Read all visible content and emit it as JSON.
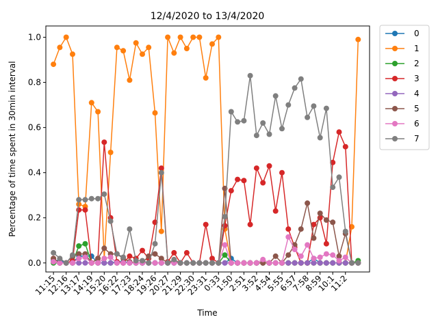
{
  "chart_data": {
    "type": "line",
    "title": "12/4/2020 to 13/4/2020",
    "xlabel": "Time",
    "ylabel": "Percentage of time spent in 30min interval",
    "ylim": [
      -0.04,
      1.05
    ],
    "yticks": [
      "0.0",
      "0.2",
      "0.4",
      "0.6",
      "0.8",
      "1.0"
    ],
    "ytick_values": [
      0,
      0.2,
      0.4,
      0.6,
      0.8,
      1.0
    ],
    "xtick_labels": [
      "11:15",
      "12:16",
      "13:17",
      "14:19",
      "15:20",
      "16:22",
      "17:23",
      "18:24",
      "19:26",
      "20:27",
      "21:29",
      "22:30",
      "23:31",
      "0:33",
      "1:50",
      "2:51",
      "3:52",
      "4:54",
      "5:55",
      "6:57",
      "7:58",
      "8:59",
      "10:1",
      "11:2"
    ],
    "xtick_index": [
      0,
      2,
      4,
      6,
      8,
      10,
      12,
      14,
      16,
      18,
      20,
      22,
      24,
      26,
      28,
      30,
      32,
      34,
      36,
      38,
      40,
      42,
      44,
      46
    ],
    "n_points": 49,
    "grid": false,
    "legend_position": "outside-right",
    "series": [
      {
        "name": "0",
        "color": "#1f77b4",
        "values": [
          0.01,
          0.01,
          0,
          0,
          0.03,
          0.03,
          0.03,
          0,
          0,
          0,
          0.005,
          0.005,
          0,
          0,
          0,
          0,
          0,
          0,
          0,
          0,
          0,
          0,
          0,
          0,
          0,
          0,
          0,
          0,
          0.02,
          0,
          0,
          0,
          0,
          0,
          0,
          0,
          0,
          0,
          0,
          0,
          0,
          0.02,
          0,
          0,
          0,
          0,
          0,
          0,
          0
        ]
      },
      {
        "name": "1",
        "color": "#ff7f0e",
        "values": [
          0.88,
          0.955,
          1.0,
          0.925,
          0.26,
          0.25,
          0.71,
          0.67,
          0.02,
          0.49,
          0.955,
          0.94,
          0.81,
          0.975,
          0.925,
          0.955,
          0.665,
          0.14,
          1.0,
          0.93,
          1.0,
          0.95,
          1.0,
          1.0,
          0.82,
          0.97,
          1.0,
          0.15,
          0,
          0,
          0,
          0,
          0,
          0,
          0,
          0,
          0,
          0,
          0,
          0,
          0,
          0,
          0,
          0,
          0,
          0,
          0,
          0.16,
          0.99
        ]
      },
      {
        "name": "2",
        "color": "#2ca02c",
        "values": [
          0,
          0,
          0,
          0,
          0.075,
          0.085,
          0,
          0,
          0,
          0,
          0,
          0,
          0,
          0,
          0,
          0,
          0,
          0,
          0,
          0,
          0,
          0,
          0,
          0,
          0,
          0,
          0,
          0.035,
          0,
          0,
          0,
          0,
          0,
          0,
          0,
          0,
          0,
          0,
          0,
          0,
          0,
          0,
          0,
          0,
          0,
          0,
          0,
          0,
          0.01
        ]
      },
      {
        "name": "3",
        "color": "#d62728",
        "values": [
          0.02,
          0,
          0,
          0.01,
          0.235,
          0.235,
          0,
          0.02,
          0.535,
          0.2,
          0.005,
          0,
          0.03,
          0.02,
          0.055,
          0.02,
          0.18,
          0.42,
          0.005,
          0.045,
          0,
          0.045,
          0,
          0,
          0.17,
          0.02,
          0,
          0.165,
          0.32,
          0.37,
          0.365,
          0.17,
          0.42,
          0.355,
          0.43,
          0.23,
          0.4,
          0.15,
          0.07,
          0,
          0,
          0.17,
          0.2,
          0.085,
          0.445,
          0.58,
          0.515,
          0,
          0
        ]
      },
      {
        "name": "4",
        "color": "#9467bd",
        "values": [
          0.005,
          0,
          0,
          0,
          0,
          0,
          0,
          0,
          0,
          0,
          0,
          0,
          0,
          0,
          0,
          0,
          0,
          0,
          0,
          0,
          0,
          0,
          0,
          0,
          0,
          0,
          0,
          0,
          0,
          0,
          0,
          0,
          0,
          0,
          0,
          0,
          0,
          0,
          0,
          0,
          0,
          0,
          0,
          0,
          0,
          0,
          0,
          0,
          0
        ]
      },
      {
        "name": "5",
        "color": "#8c564b",
        "values": [
          0.02,
          0,
          0,
          0.03,
          0.04,
          0.04,
          0,
          0.02,
          0.065,
          0.04,
          0.04,
          0.02,
          0.005,
          0,
          0,
          0.03,
          0.04,
          0.02,
          0,
          0.005,
          0,
          0,
          0,
          0,
          0,
          0,
          0,
          0.33,
          0,
          0,
          0,
          0,
          0,
          0,
          0,
          0.03,
          0,
          0.035,
          0.08,
          0.15,
          0.265,
          0.11,
          0.22,
          0.19,
          0.18,
          0.03,
          0.13,
          0,
          0
        ]
      },
      {
        "name": "6",
        "color": "#e377c2",
        "values": [
          0.005,
          0,
          0,
          0,
          0.02,
          0.025,
          0,
          0,
          0.02,
          0.025,
          0,
          0,
          0,
          0,
          0,
          0,
          0,
          0,
          0,
          0,
          0,
          0,
          0,
          0,
          0,
          0,
          0,
          0.08,
          0,
          0,
          0,
          0,
          0,
          0.015,
          0,
          0,
          0,
          0.115,
          0.06,
          0.03,
          0.08,
          0.02,
          0.025,
          0.04,
          0.035,
          0.01,
          0.025,
          0,
          0
        ]
      },
      {
        "name": "7",
        "color": "#7f7f7f",
        "values": [
          0.045,
          0.02,
          0,
          0.035,
          0.28,
          0.28,
          0.285,
          0.285,
          0.305,
          0.185,
          0.04,
          0.025,
          0.15,
          0.01,
          0.01,
          0,
          0.085,
          0.4,
          0,
          0.015,
          0,
          0,
          0,
          0,
          0,
          0,
          0,
          0.205,
          0.67,
          0.625,
          0.63,
          0.83,
          0.565,
          0.62,
          0.57,
          0.74,
          0.595,
          0.7,
          0.775,
          0.815,
          0.645,
          0.695,
          0.555,
          0.685,
          0.335,
          0.38,
          0.14,
          0,
          0
        ]
      }
    ]
  }
}
